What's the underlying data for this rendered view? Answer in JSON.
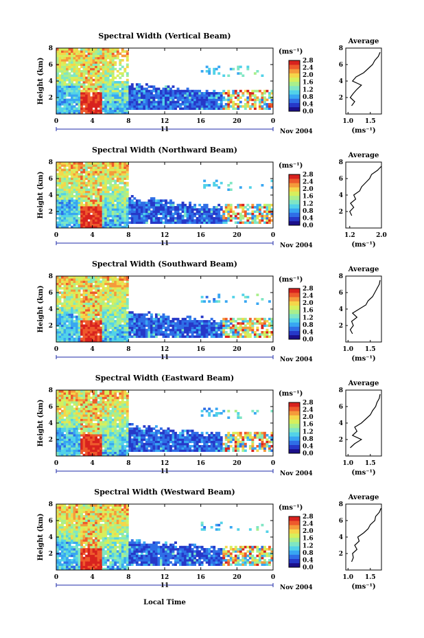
{
  "x_axis": {
    "ticks": [
      "0",
      "4",
      "8",
      "12",
      "16",
      "20",
      "0"
    ],
    "day_label": "11",
    "date_label": "Nov 2004",
    "label": "Local Time"
  },
  "y_axis_label": "Height (km)",
  "unit_label": "(ms⁻¹)",
  "average_title": "Average",
  "colorbar_ticks": [
    "2.8",
    "2.4",
    "2.0",
    "1.6",
    "1.2",
    "0.8",
    "0.4",
    "0.0"
  ],
  "colors": {
    "scale": [
      "#1b0f8a",
      "#2638c8",
      "#2f6ee6",
      "#38a6f2",
      "#52d2e8",
      "#7fe6c4",
      "#a9ef8c",
      "#d7ef5c",
      "#f5d64a",
      "#f59a3b",
      "#ee5a2c",
      "#d8221e"
    ]
  },
  "chart_data": [
    {
      "type": "heatmap",
      "title": "Spectral Width (Vertical Beam)",
      "ylabel": "Height (km)",
      "xlabel": "",
      "y_ticks": [
        "2",
        "4",
        "6",
        "8"
      ],
      "ylim": [
        0,
        8
      ],
      "xlim": [
        0,
        24
      ],
      "colorbar_range": [
        0.0,
        2.8
      ],
      "average": {
        "title": "Average",
        "x_ticks": [
          "1.0",
          "1.5"
        ],
        "xlim": [
          0.95,
          1.75
        ],
        "x_label": "(ms⁻¹)",
        "height_km": [
          1,
          1.5,
          2,
          2.5,
          3,
          3.5,
          4,
          4.5,
          5,
          5.5,
          6,
          6.5,
          7,
          7.5
        ],
        "value": [
          1.08,
          1.15,
          1.05,
          1.12,
          1.2,
          1.3,
          1.1,
          1.18,
          1.35,
          1.45,
          1.55,
          1.6,
          1.68,
          1.72
        ]
      }
    },
    {
      "type": "heatmap",
      "title": "Spectral Width (Northward Beam)",
      "ylabel": "Height (km)",
      "xlabel": "",
      "y_ticks": [
        "2",
        "4",
        "6",
        "8"
      ],
      "ylim": [
        0,
        8
      ],
      "xlim": [
        0,
        24
      ],
      "colorbar_range": [
        0.0,
        2.8
      ],
      "average": {
        "title": "Average",
        "x_ticks": [
          "1.2",
          "2.0"
        ],
        "xlim": [
          1.1,
          2.0
        ],
        "x_label": "(ms⁻¹)",
        "height_km": [
          1.5,
          2,
          2.5,
          3,
          3.5,
          4,
          4.5,
          5,
          5.5,
          6,
          6.5,
          7,
          7.5
        ],
        "value": [
          1.25,
          1.2,
          1.3,
          1.22,
          1.35,
          1.3,
          1.45,
          1.5,
          1.6,
          1.7,
          1.75,
          1.9,
          2.0
        ]
      }
    },
    {
      "type": "heatmap",
      "title": "Spectral Width (Southward Beam)",
      "ylabel": "Height (km)",
      "xlabel": "",
      "y_ticks": [
        "2",
        "4",
        "6",
        "8"
      ],
      "ylim": [
        0,
        8
      ],
      "xlim": [
        0,
        24
      ],
      "colorbar_range": [
        0.0,
        2.8
      ],
      "average": {
        "title": "Average",
        "x_ticks": [
          "1.0",
          "1.5"
        ],
        "xlim": [
          0.95,
          1.75
        ],
        "x_label": "(ms⁻¹)",
        "height_km": [
          1,
          1.5,
          2,
          2.5,
          3,
          3.5,
          4,
          4.5,
          5,
          5.5,
          6,
          6.5,
          7,
          7.5
        ],
        "value": [
          1.1,
          1.05,
          1.12,
          1.08,
          1.2,
          1.1,
          1.25,
          1.4,
          1.45,
          1.55,
          1.6,
          1.65,
          1.7,
          1.72
        ]
      }
    },
    {
      "type": "heatmap",
      "title": "Spectral Width (Eastward Beam)",
      "ylabel": "Height (km)",
      "xlabel": "",
      "y_ticks": [
        "2",
        "4",
        "6",
        "8"
      ],
      "ylim": [
        0,
        8
      ],
      "xlim": [
        0,
        24
      ],
      "colorbar_range": [
        0.0,
        2.8
      ],
      "average": {
        "title": "Average",
        "x_ticks": [
          "1.0",
          "1.5"
        ],
        "xlim": [
          0.95,
          1.75
        ],
        "x_label": "(ms⁻¹)",
        "height_km": [
          1,
          1.5,
          2,
          2.5,
          3,
          3.5,
          4,
          4.5,
          5,
          5.5,
          6,
          6.5,
          7,
          7.5
        ],
        "value": [
          1.05,
          1.15,
          1.3,
          1.1,
          1.2,
          1.15,
          1.3,
          1.4,
          1.5,
          1.55,
          1.62,
          1.65,
          1.7,
          1.72
        ]
      }
    },
    {
      "type": "heatmap",
      "title": "Spectral Width (Westward Beam)",
      "ylabel": "Height (km)",
      "xlabel": "Local Time",
      "y_ticks": [
        "2",
        "4",
        "6",
        "8"
      ],
      "ylim": [
        0,
        8
      ],
      "xlim": [
        0,
        24
      ],
      "colorbar_range": [
        0.0,
        2.8
      ],
      "average": {
        "title": "Average",
        "x_ticks": [
          "1.0",
          "1.5"
        ],
        "xlim": [
          0.95,
          1.75
        ],
        "x_label": "(ms⁻¹)",
        "height_km": [
          1,
          1.5,
          2,
          2.5,
          3,
          3.5,
          4,
          4.5,
          5,
          5.5,
          6,
          6.5,
          7,
          7.5
        ],
        "value": [
          1.08,
          1.12,
          1.1,
          1.2,
          1.15,
          1.25,
          1.22,
          1.35,
          1.45,
          1.5,
          1.6,
          1.62,
          1.7,
          1.74
        ]
      }
    }
  ]
}
